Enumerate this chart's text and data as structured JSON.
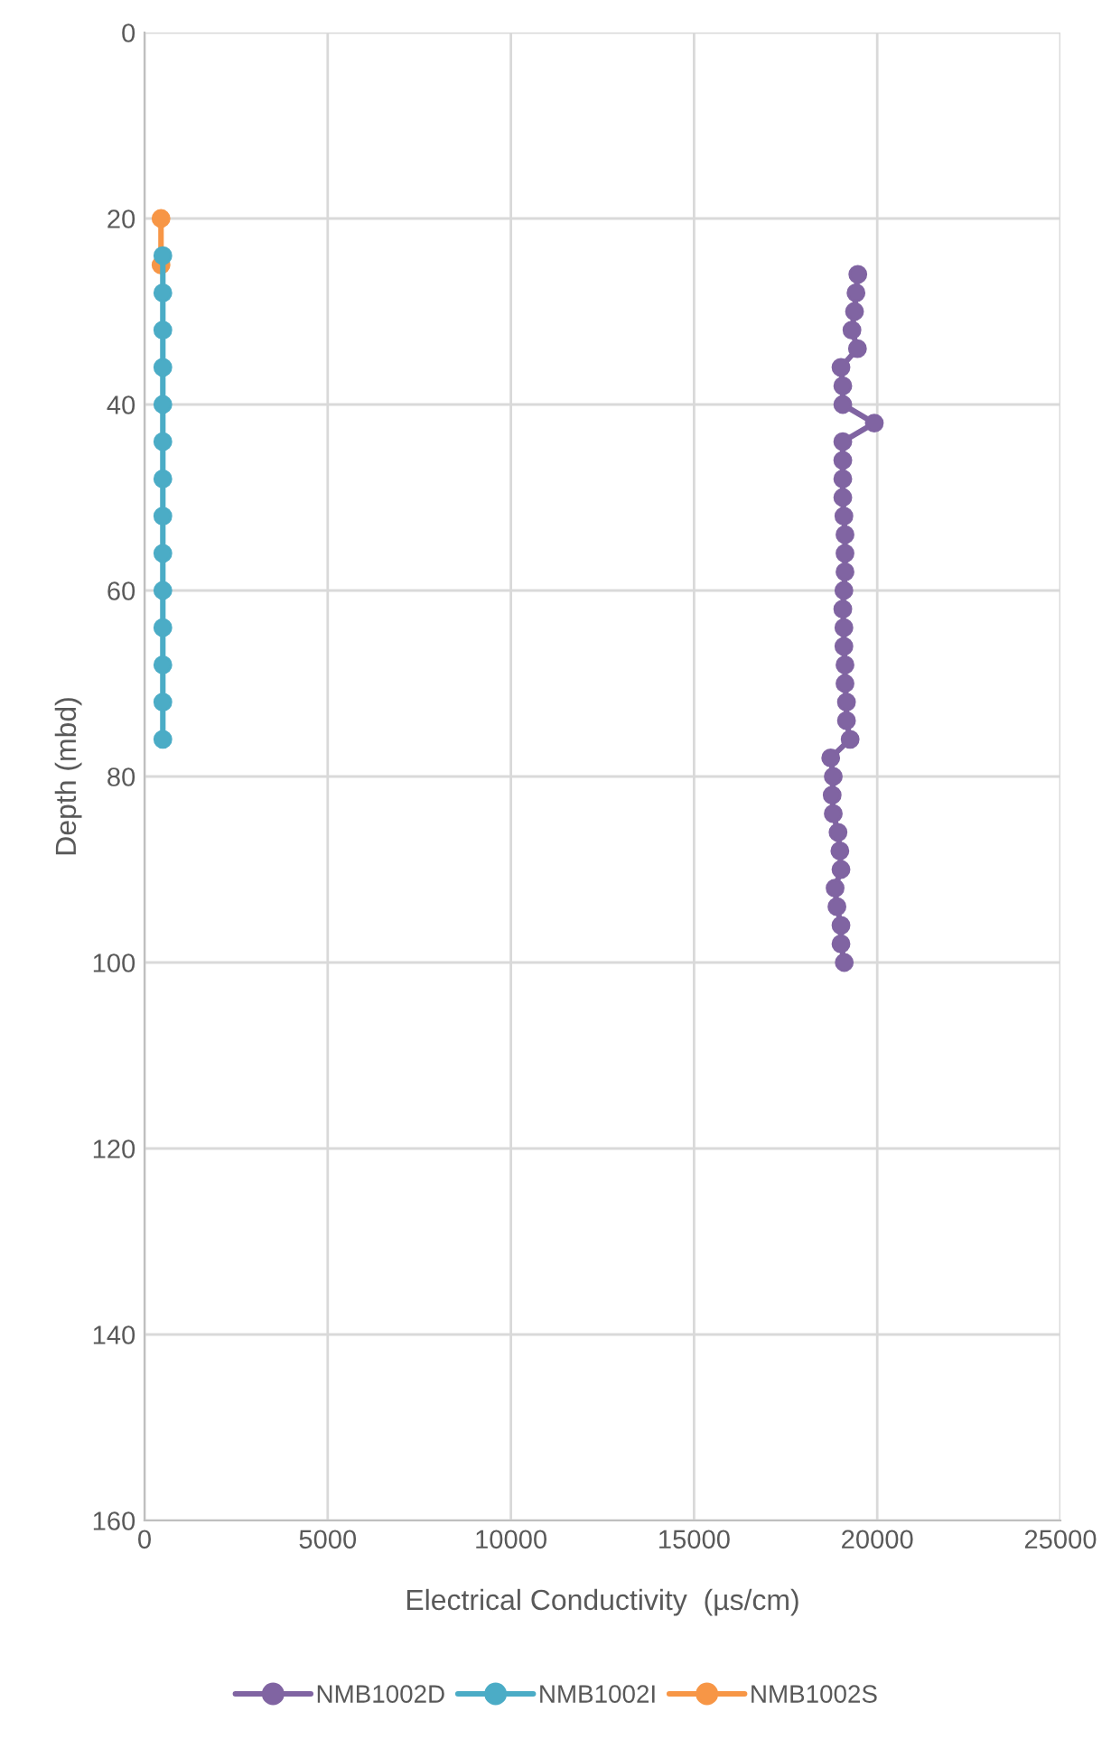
{
  "chart_data": {
    "type": "line",
    "xlabel": "Electrical Conductivity  (µs/cm)",
    "ylabel": "Depth (mbd)",
    "xlim": [
      0,
      25000
    ],
    "xticks": [
      0,
      5000,
      10000,
      15000,
      20000,
      25000
    ],
    "ylim": [
      160,
      0
    ],
    "yticks": [
      0,
      20,
      40,
      60,
      80,
      100,
      120,
      140,
      160
    ],
    "grid": true,
    "legend": "bottom",
    "marker": "circle",
    "line_style": "solid",
    "series": [
      {
        "name": "NMB1002D",
        "color": "#8064a2",
        "x": [
          19470,
          19420,
          19380,
          19310,
          19460,
          19010,
          19060,
          19060,
          19920,
          19060,
          19060,
          19060,
          19060,
          19090,
          19120,
          19120,
          19120,
          19090,
          19060,
          19090,
          19090,
          19120,
          19120,
          19160,
          19160,
          19260,
          18730,
          18800,
          18770,
          18800,
          18930,
          18980,
          19010,
          18850,
          18900,
          19010,
          19010,
          19100
        ],
        "values": [
          26,
          28,
          30,
          32,
          34,
          36,
          38,
          40,
          42,
          44,
          46,
          48,
          50,
          52,
          54,
          56,
          58,
          60,
          62,
          64,
          66,
          68,
          70,
          72,
          74,
          76,
          78,
          80,
          82,
          84,
          86,
          88,
          90,
          92,
          94,
          96,
          98,
          100
        ]
      },
      {
        "name": "NMB1002I",
        "color": "#4bacc6",
        "x": [
          500,
          500,
          500,
          500,
          500,
          500,
          500,
          500,
          500,
          500,
          500,
          500,
          500,
          500
        ],
        "values": [
          24,
          28,
          32,
          36,
          40,
          44,
          48,
          52,
          56,
          60,
          64,
          68,
          72,
          76
        ]
      },
      {
        "name": "NMB1002S",
        "color": "#f79646",
        "x": [
          450,
          450
        ],
        "values": [
          20,
          25
        ]
      }
    ]
  }
}
